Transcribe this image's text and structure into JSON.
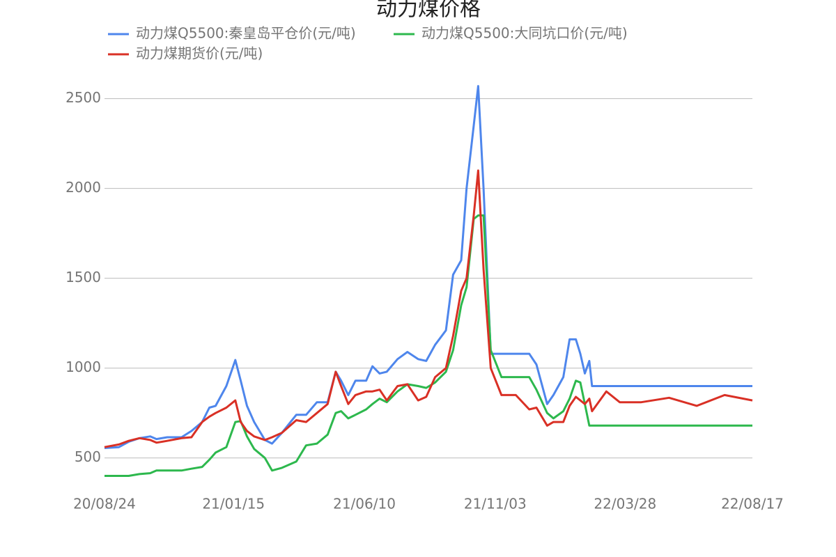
{
  "chart_data": {
    "type": "line",
    "title": "动力煤价格",
    "x": [
      "20/08/24",
      "20/09/09",
      "20/09/20",
      "20/10/02",
      "20/10/14",
      "20/10/21",
      "20/11/02",
      "20/11/18",
      "20/11/29",
      "20/12/11",
      "20/12/19",
      "20/12/26",
      "21/01/07",
      "21/01/17",
      "21/01/23",
      "21/01/30",
      "21/02/07",
      "21/02/19",
      "21/02/27",
      "21/03/10",
      "21/03/26",
      "21/04/06",
      "21/04/18",
      "21/04/30",
      "21/05/09",
      "21/05/15",
      "21/05/23",
      "21/05/31",
      "21/06/12",
      "21/06/19",
      "21/06/27",
      "21/07/05",
      "21/07/17",
      "21/07/28",
      "21/08/09",
      "21/08/18",
      "21/08/28",
      "21/09/09",
      "21/09/17",
      "21/09/26",
      "21/10/02",
      "21/10/10",
      "21/10/15",
      "21/10/21",
      "21/10/29",
      "21/11/10",
      "21/11/26",
      "21/12/11",
      "21/12/19",
      "21/12/31",
      "22/01/07",
      "22/01/18",
      "22/01/25",
      "22/02/01",
      "22/02/06",
      "22/02/11",
      "22/02/16",
      "22/02/19",
      "22/03/07",
      "22/03/22",
      "22/04/15",
      "22/05/16",
      "22/06/16",
      "22/07/17",
      "22/08/17"
    ],
    "series": [
      {
        "name": "动力煤Q5500:秦皇岛平仓价(元/吨)",
        "color": "#4e86ec",
        "values": [
          555,
          560,
          590,
          610,
          620,
          605,
          615,
          615,
          650,
          700,
          780,
          790,
          900,
          1045,
          930,
          790,
          700,
          600,
          580,
          640,
          740,
          740,
          810,
          810,
          980,
          930,
          850,
          930,
          930,
          1010,
          970,
          980,
          1050,
          1090,
          1050,
          1040,
          1130,
          1210,
          1520,
          1600,
          2000,
          2350,
          2570,
          2000,
          1080,
          1080,
          1080,
          1080,
          1020,
          800,
          850,
          950,
          1160,
          1160,
          1080,
          970,
          1040,
          900,
          900,
          900,
          900,
          900,
          900,
          900,
          900
        ]
      },
      {
        "name": "动力煤Q5500:大同坑口价(元/吨)",
        "color": "#2db84d",
        "values": [
          400,
          400,
          400,
          410,
          415,
          430,
          430,
          430,
          440,
          450,
          490,
          530,
          560,
          700,
          705,
          620,
          550,
          500,
          430,
          445,
          480,
          570,
          580,
          630,
          750,
          760,
          720,
          740,
          770,
          800,
          830,
          810,
          870,
          910,
          900,
          890,
          920,
          980,
          1100,
          1350,
          1450,
          1830,
          1850,
          1850,
          1100,
          950,
          950,
          950,
          880,
          750,
          720,
          760,
          830,
          930,
          920,
          800,
          680,
          680,
          680,
          680,
          680,
          680,
          680,
          680,
          680
        ]
      },
      {
        "name": "动力煤期货价(元/吨)",
        "color": "#d93025",
        "values": [
          560,
          575,
          595,
          610,
          600,
          585,
          595,
          610,
          615,
          700,
          730,
          750,
          780,
          820,
          700,
          650,
          620,
          600,
          615,
          640,
          710,
          700,
          750,
          800,
          980,
          900,
          800,
          850,
          870,
          870,
          880,
          820,
          900,
          910,
          820,
          840,
          950,
          1000,
          1180,
          1430,
          1500,
          1850,
          2100,
          1550,
          1000,
          850,
          850,
          770,
          780,
          680,
          700,
          700,
          790,
          840,
          820,
          800,
          830,
          760,
          870,
          810,
          810,
          835,
          790,
          850,
          820
        ]
      }
    ],
    "xlim": [
      "20/08/24",
      "22/08/17"
    ],
    "xticks": [
      "20/08/24",
      "21/01/15",
      "21/06/10",
      "21/11/03",
      "22/03/28",
      "22/08/17"
    ],
    "ylim": [
      340,
      2580
    ],
    "yticks": [
      500,
      1000,
      1500,
      2000,
      2500
    ],
    "grid": true
  }
}
